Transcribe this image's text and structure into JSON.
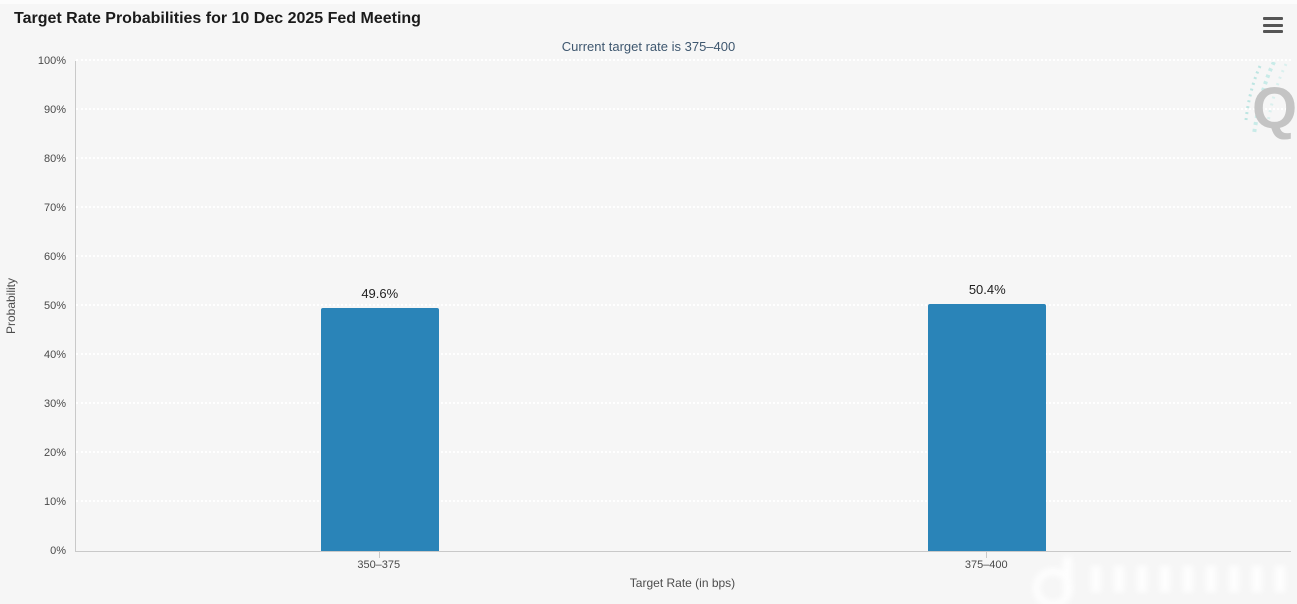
{
  "header": {
    "title": "Target Rate Probabilities for 10 Dec 2025 Fed Meeting",
    "subtitle": "Current target rate is 375–400",
    "menu_icon": "hamburger-menu-icon"
  },
  "chart_data": {
    "type": "bar",
    "title": "Target Rate Probabilities for 10 Dec 2025 Fed Meeting",
    "subtitle": "Current target rate is 375–400",
    "categories": [
      "350–375",
      "375–400"
    ],
    "values": [
      49.6,
      50.4
    ],
    "value_labels": [
      "49.6%",
      "50.4%"
    ],
    "xlabel": "Target Rate (in bps)",
    "ylabel": "Probability",
    "ylim": [
      0,
      100
    ],
    "ytick_step": 10,
    "ytick_labels": [
      "0%",
      "10%",
      "20%",
      "30%",
      "40%",
      "50%",
      "60%",
      "70%",
      "80%",
      "90%",
      "100%"
    ],
    "grid": "horizontal dotted white gridlines, no vertical gridlines",
    "legend": "none",
    "bar_color": "#2a84b8"
  },
  "watermarks": {
    "logo_letter": "Q",
    "logo_accent_color": "#8ed7d2",
    "logo_letter_color": "#c4c4c4"
  },
  "colors": {
    "background": "#f6f6f6",
    "bar": "#2a84b8",
    "axis_line": "#c9c9c9",
    "tick_text": "#4a4a4a",
    "subtitle_text": "#3e576f",
    "title_text": "#1b1b1b"
  }
}
